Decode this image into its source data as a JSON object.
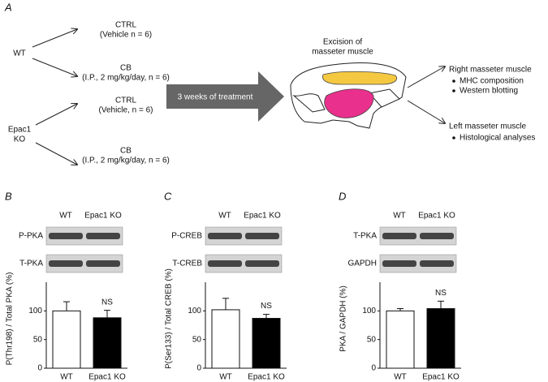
{
  "panel_a": {
    "label": "A",
    "groups": [
      {
        "name": [
          "WT"
        ],
        "arms": [
          {
            "title": "CTRL",
            "detail": "(Vehicle n = 6)"
          },
          {
            "title": "CB",
            "detail": "(I.P., 2 mg/kg/day, n = 6)"
          }
        ]
      },
      {
        "name": [
          "Epac1",
          "KO"
        ],
        "arms": [
          {
            "title": "CTRL",
            "detail": "(Vehicle, n = 6)"
          },
          {
            "title": "CB",
            "detail": "(I.P., 2 mg/kg/day, n = 6)"
          }
        ]
      }
    ],
    "treatment": "3 weeks of treatment",
    "excision": [
      "Excision of",
      "masseter muscle"
    ],
    "outcomes": [
      {
        "title": "Right masseter muscle",
        "items": [
          "MHC composition",
          "Western blotting"
        ]
      },
      {
        "title": "Left masseter muscle",
        "items": [
          "Histological analyses"
        ]
      }
    ]
  },
  "chart_data": [
    {
      "type": "bar",
      "label": "B",
      "blot_columns": [
        "WT",
        "Epac1 KO"
      ],
      "blot_rows": [
        "P-PKA",
        "T-PKA"
      ],
      "ylabel": "P(Thr198) / Total PKA (%)",
      "categories": [
        "WT",
        "Epac1 KO"
      ],
      "values": [
        100,
        88
      ],
      "errors": [
        16,
        13
      ],
      "colors": [
        "#ffffff",
        "#000000"
      ],
      "ylim": [
        0,
        150
      ],
      "yticks": [
        0,
        50,
        100
      ],
      "annotation": "NS"
    },
    {
      "type": "bar",
      "label": "C",
      "blot_columns": [
        "WT",
        "Epac1 KO"
      ],
      "blot_rows": [
        "P-CREB",
        "T-CREB"
      ],
      "ylabel": "P(Ser133) / Total CREB (%)",
      "categories": [
        "WT",
        "Epac1 KO"
      ],
      "values": [
        102,
        87
      ],
      "errors": [
        20,
        7
      ],
      "colors": [
        "#ffffff",
        "#000000"
      ],
      "ylim": [
        0,
        150
      ],
      "yticks": [
        0,
        50,
        100
      ],
      "annotation": "NS"
    },
    {
      "type": "bar",
      "label": "D",
      "blot_columns": [
        "WT",
        "Epac1 KO"
      ],
      "blot_rows": [
        "T-PKA",
        "GAPDH"
      ],
      "ylabel": "PKA / GAPDH (%)",
      "categories": [
        "WT",
        "Epac1 KO"
      ],
      "values": [
        100,
        104
      ],
      "errors": [
        4,
        13
      ],
      "colors": [
        "#ffffff",
        "#000000"
      ],
      "ylim": [
        0,
        150
      ],
      "yticks": [
        0,
        50,
        100
      ],
      "annotation": "NS"
    }
  ]
}
